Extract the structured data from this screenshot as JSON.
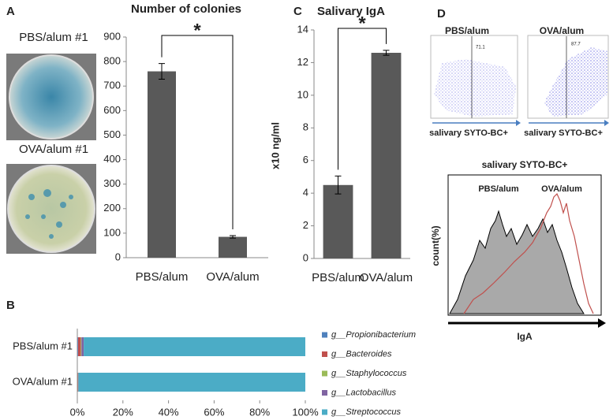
{
  "chart_data": [
    {
      "type": "bar",
      "panel": "A",
      "title": "Number of colonies",
      "image_labels": [
        "PBS/alum #1",
        "OVA/alum #1"
      ],
      "categories": [
        "PBS/alum",
        "OVA/alum"
      ],
      "values": [
        760,
        85
      ],
      "errors": [
        32,
        5
      ],
      "color": "#595959",
      "ylim": [
        0,
        900
      ],
      "yticks": [
        0,
        100,
        200,
        300,
        400,
        500,
        600,
        700,
        800,
        900
      ],
      "annotation": "*"
    },
    {
      "type": "stacked_bar",
      "panel": "B",
      "categories": [
        "PBS/alum #1",
        "OVA/alum #1"
      ],
      "series": [
        {
          "name": "g__Propionibacterium",
          "color": "#4f81bd",
          "values": [
            0.3,
            0.1
          ]
        },
        {
          "name": "g__Bacteroides",
          "color": "#c0504d",
          "values": [
            1.2,
            0.2
          ]
        },
        {
          "name": "g__Staphylococcus",
          "color": "#9bbb59",
          "values": [
            0.3,
            0.1
          ]
        },
        {
          "name": "g__Lactobacillus",
          "color": "#8064a2",
          "values": [
            1.0,
            0.1
          ]
        },
        {
          "name": "g__Streptococcus",
          "color": "#4bacc6",
          "values": [
            97.2,
            99.5
          ]
        }
      ],
      "xlim": [
        0,
        100
      ],
      "xticks": [
        {
          "value": 0,
          "label": "0%"
        },
        {
          "value": 20,
          "label": "20%"
        },
        {
          "value": 40,
          "label": "40%"
        },
        {
          "value": 60,
          "label": "60%"
        },
        {
          "value": 80,
          "label": "80%"
        },
        {
          "value": 100,
          "label": "100%"
        }
      ]
    },
    {
      "type": "bar",
      "panel": "C",
      "title": "Salivary IgA",
      "y_label": "x10 ng/ml",
      "categories": [
        "PBS/alum",
        "OVA/alum"
      ],
      "values": [
        4.5,
        12.6
      ],
      "errors": [
        0.55,
        0.15
      ],
      "color": "#595959",
      "ylim": [
        0,
        14
      ],
      "yticks": [
        0,
        2,
        4,
        6,
        8,
        10,
        12,
        14
      ],
      "annotation": "*"
    }
  ],
  "flow": {
    "panel": "D",
    "scatter_plots": [
      {
        "title": "PBS/alum",
        "gate_value": 71.1,
        "x_label": "salivary SYTO-BC+"
      },
      {
        "title": "OVA/alum",
        "gate_value": 87.7,
        "x_label": "salivary SYTO-BC+"
      }
    ],
    "histogram": {
      "title": "salivary SYTO-BC+",
      "series": [
        "PBS/alum",
        "OVA/alum"
      ],
      "x_label": "IgA",
      "y_label": "count(%)"
    }
  }
}
